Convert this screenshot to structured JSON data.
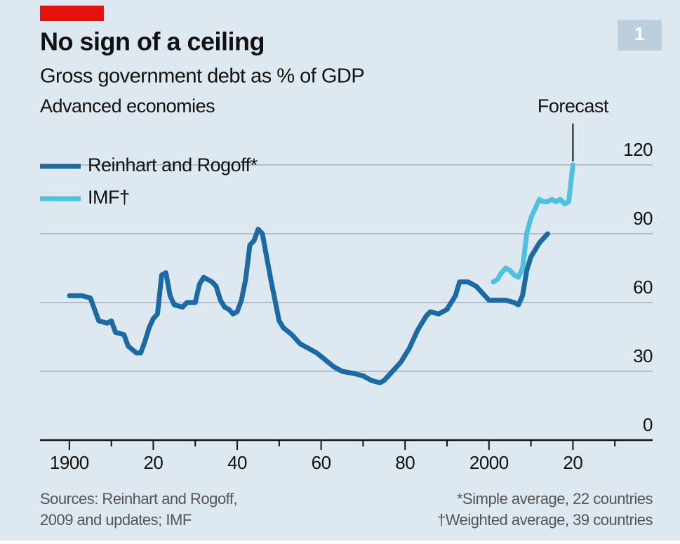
{
  "chart_data": {
    "type": "line",
    "title": "No sign of a ceiling",
    "subtitle": "Gross government debt as % of GDP",
    "subtitle2": "Advanced economies",
    "chart_number": "1",
    "series": [
      {
        "name": "Reinhart and Rogoff*",
        "color": "#1a6aa6",
        "x": [
          1900,
          1901,
          1903,
          1905,
          1907,
          1909,
          1910,
          1911,
          1913,
          1914,
          1916,
          1917,
          1918,
          1919,
          1920,
          1921,
          1922,
          1923,
          1924,
          1925,
          1927,
          1928,
          1930,
          1931,
          1932,
          1934,
          1935,
          1936,
          1937,
          1938,
          1939,
          1940,
          1941,
          1942,
          1943,
          1944,
          1945,
          1946,
          1947,
          1948,
          1950,
          1951,
          1953,
          1955,
          1957,
          1959,
          1961,
          1963,
          1965,
          1968,
          1970,
          1972,
          1974,
          1975,
          1977,
          1979,
          1981,
          1983,
          1985,
          1986,
          1988,
          1990,
          1992,
          1993,
          1995,
          1997,
          1999,
          2000,
          2002,
          2004,
          2006,
          2007,
          2008,
          2009,
          2010,
          2012,
          2014
        ],
        "values": [
          63,
          63,
          63,
          62,
          52,
          51,
          52,
          47,
          46,
          41,
          38,
          38,
          43,
          49,
          53,
          55,
          72,
          73,
          63,
          59,
          58,
          60,
          60,
          68,
          71,
          69,
          67,
          61,
          58,
          57,
          55,
          56,
          61,
          70,
          85,
          87,
          92,
          90,
          80,
          70,
          52,
          49,
          46,
          42,
          40,
          38,
          35,
          32,
          30,
          29,
          28,
          26,
          25,
          26,
          30,
          34,
          40,
          48,
          54,
          56,
          55,
          57,
          63,
          69,
          69,
          67,
          63,
          61,
          61,
          61,
          60,
          59,
          63,
          74,
          80,
          86,
          90
        ]
      },
      {
        "name": "IMF†",
        "color": "#4bc2e0",
        "x": [
          2001,
          2002,
          2003,
          2004,
          2005,
          2006,
          2007,
          2008,
          2009,
          2010,
          2011,
          2012,
          2013,
          2014,
          2015,
          2016,
          2017,
          2018,
          2019,
          2020
        ],
        "values": [
          69,
          70,
          73,
          75,
          74,
          72,
          71,
          75,
          90,
          97,
          101,
          105,
          104,
          104,
          105,
          104,
          105,
          103,
          104,
          120
        ]
      }
    ],
    "xlim": [
      1893,
      2039
    ],
    "ylim": [
      0,
      120
    ],
    "xticks": [
      1900,
      {
        "value": 1920,
        "label": "20"
      },
      {
        "value": 1940,
        "label": "40"
      },
      {
        "value": 1960,
        "label": "60"
      },
      {
        "value": 1980,
        "label": "80"
      },
      2000,
      {
        "value": 2020,
        "label": "20"
      }
    ],
    "xminorticks": [
      1910,
      1930,
      1950,
      1970,
      1990,
      2010,
      2030
    ],
    "yticks": [
      0,
      30,
      60,
      90,
      120
    ],
    "grid": true,
    "annotations": [
      {
        "text": "Forecast",
        "x": 2020
      }
    ],
    "source": [
      "Sources: Reinhart and Rogoff,",
      "2009 and updates; IMF"
    ],
    "notes": [
      "*Simple average, 22 countries",
      "†Weighted average, 39 countries"
    ]
  }
}
